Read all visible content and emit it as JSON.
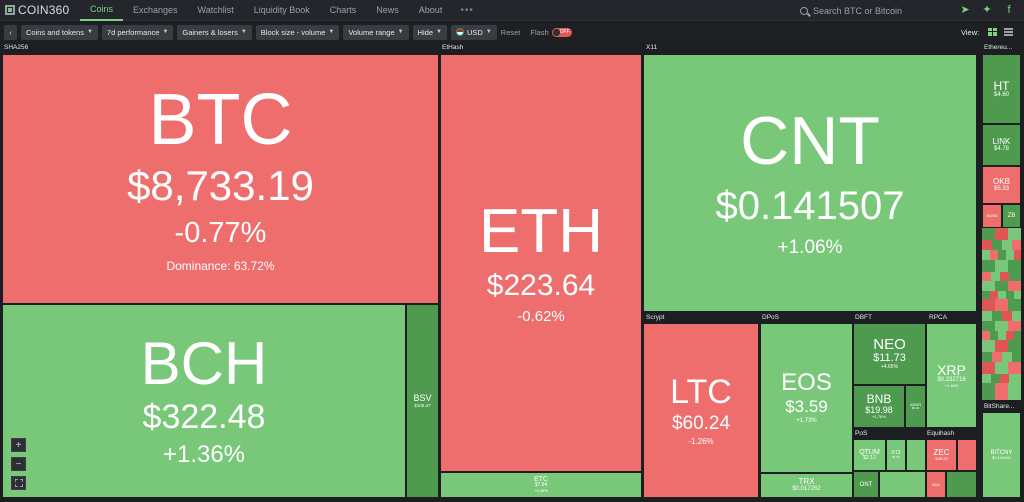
{
  "brand": "COIN360",
  "nav": [
    "Coins",
    "Exchanges",
    "Watchlist",
    "Liquidity Book",
    "Charts",
    "News",
    "About"
  ],
  "nav_more": "•••",
  "search_placeholder": "Search BTC or Bitcoin",
  "toolbar": {
    "back": "‹",
    "coins_tokens": "Coins and tokens",
    "performance": "7d performance",
    "gainers": "Gainers & losers",
    "block_size": "Block size - volume",
    "volume_range": "Volume range",
    "hide": "Hide",
    "currency": "USD",
    "reset": "Reset",
    "flash": "Flash",
    "flash_state": "OFF",
    "view": "View:"
  },
  "colors": {
    "down": "#ee6e6e",
    "up": "#79c779",
    "accent": "#7ed37e"
  },
  "groups": {
    "sha256": "SHA256",
    "ethash": "EtHash",
    "x11": "X11",
    "ethereum": "Ethereu...",
    "scrypt": "Scrypt",
    "dpos": "DPoS",
    "dbft": "DBFT",
    "rpca": "RPCA",
    "pos": "PoS",
    "equihash": "Equihash",
    "bitshares": "BitShare..."
  },
  "coins": {
    "btc": {
      "symbol": "BTC",
      "price": "$8,733.19",
      "change": "-0.77%",
      "dominance": "Dominance: 63.72%"
    },
    "bch": {
      "symbol": "BCH",
      "price": "$322.48",
      "change": "+1.36%"
    },
    "bsv": {
      "symbol": "BSV",
      "price": "$105.47"
    },
    "eth": {
      "symbol": "ETH",
      "price": "$223.64",
      "change": "-0.62%"
    },
    "etc": {
      "symbol": "ETC",
      "price": "$7.94",
      "change": "+0.36%"
    },
    "cnt": {
      "symbol": "CNT",
      "price": "$0.141507",
      "change": "+1.06%"
    },
    "ltc": {
      "symbol": "LTC",
      "price": "$60.24",
      "change": "-1.26%"
    },
    "eos": {
      "symbol": "EOS",
      "price": "$3.59",
      "change": "+1.73%"
    },
    "trx": {
      "symbol": "TRX",
      "price": "$0.017262"
    },
    "neo": {
      "symbol": "NEO",
      "price": "$11.73",
      "change": "+4.65%"
    },
    "bnb": {
      "symbol": "BNB",
      "price": "$19.98",
      "change": "+1.76%"
    },
    "ardr": {
      "symbol": "ARDR",
      "price": "$0.06"
    },
    "xrp": {
      "symbol": "XRP",
      "price": "$0.232716",
      "change": "+1.48%"
    },
    "qtum": {
      "symbol": "QTUM",
      "price": "$2.12"
    },
    "xtz": {
      "symbol": "XTZ",
      "price": "$1.03"
    },
    "ont": {
      "symbol": "ONT"
    },
    "zec": {
      "symbol": "ZEC",
      "price": "$38.23"
    },
    "ada": {
      "symbol": "ADA"
    },
    "ht": {
      "symbol": "HT",
      "price": "$4.60"
    },
    "link": {
      "symbol": "LINK",
      "price": "$4.78"
    },
    "okb": {
      "symbol": "OKB",
      "price": "$5.33"
    },
    "busd": {
      "symbol": "BUSD"
    },
    "zb": {
      "symbol": "ZB"
    },
    "bitcny": {
      "symbol": "BITCNY",
      "price": "$0.141501"
    }
  }
}
